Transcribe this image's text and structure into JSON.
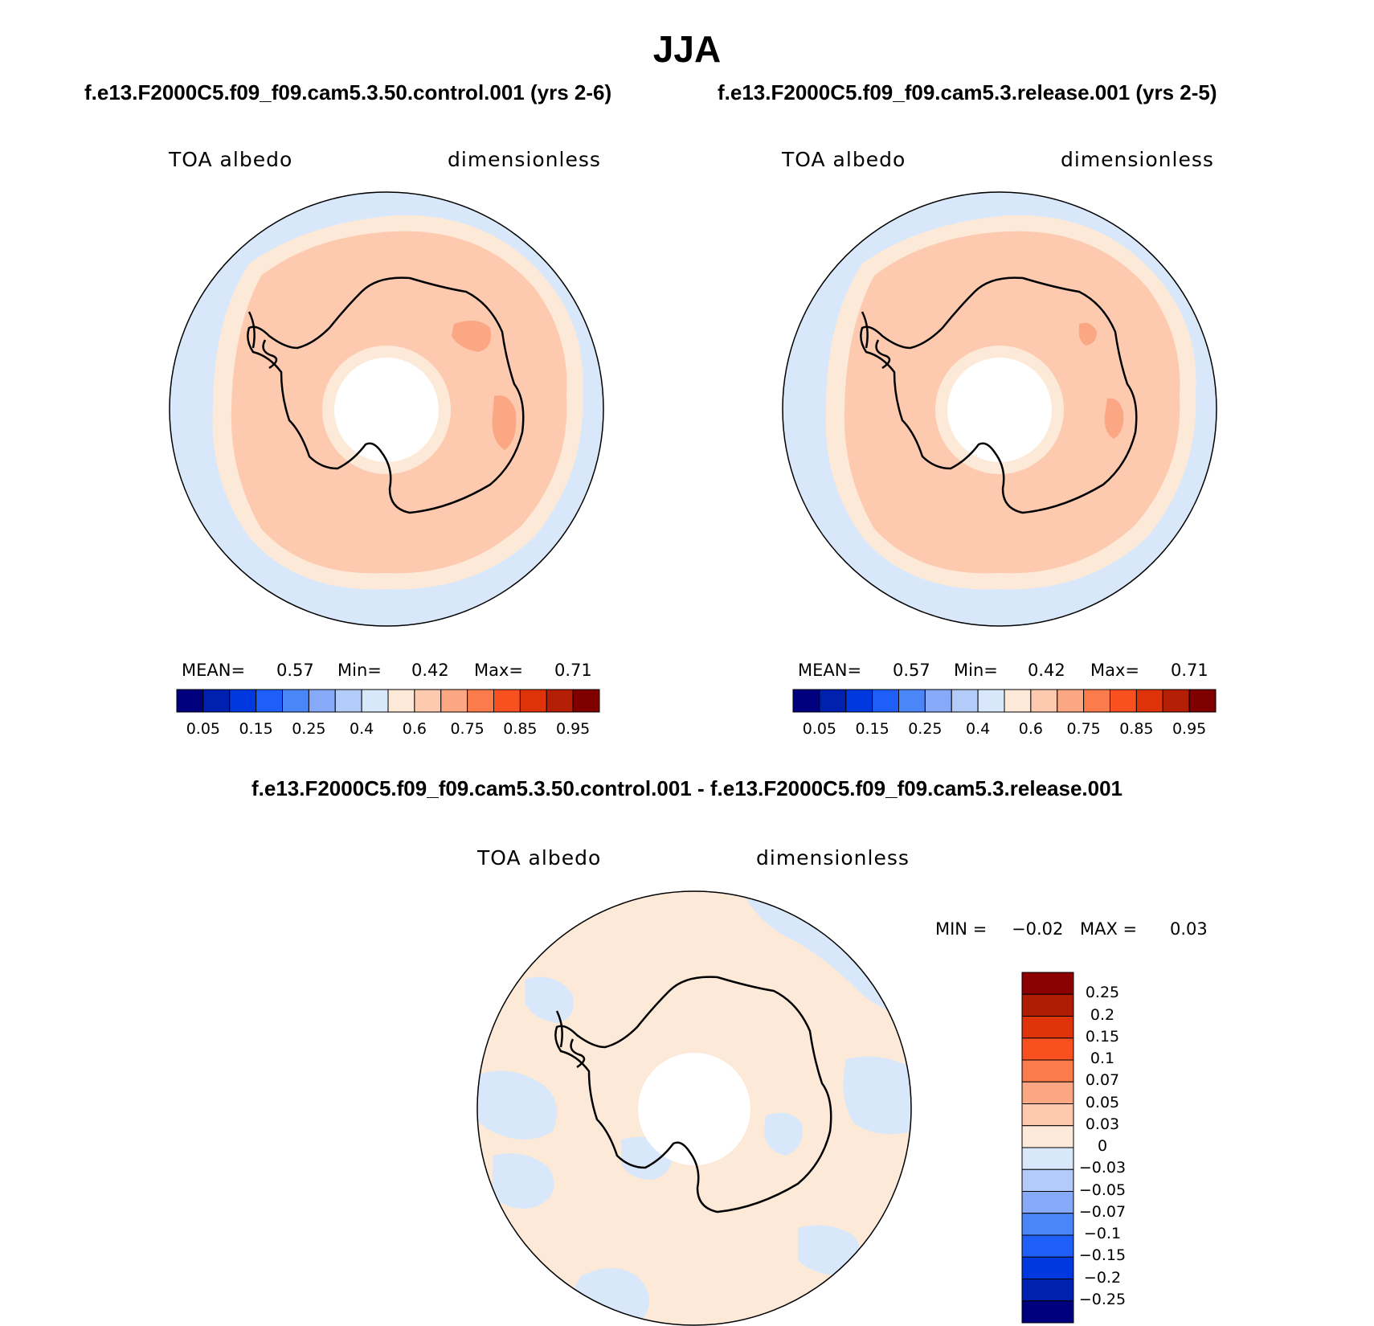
{
  "title": "JJA",
  "panels": [
    {
      "case_title": "f.e13.F2000C5.f09_f09.cam5.3.50.control.001 (yrs 2-6)",
      "left_label": "TOA albedo",
      "right_label": "dimensionless",
      "stats": {
        "mean_label": "MEAN=",
        "mean_value": "0.57",
        "min_label": "Min=",
        "min_value": "0.42",
        "max_label": "Max=",
        "max_value": "0.71"
      }
    },
    {
      "case_title": "f.e13.F2000C5.f09_f09.cam5.3.release.001 (yrs 2-5)",
      "left_label": "TOA albedo",
      "right_label": "dimensionless",
      "stats": {
        "mean_label": "MEAN=",
        "mean_value": "0.57",
        "min_label": "Min=",
        "min_value": "0.42",
        "max_label": "Max=",
        "max_value": "0.71"
      }
    }
  ],
  "colorbar_abs": {
    "colors": [
      "#00007f",
      "#0020b0",
      "#0038e0",
      "#1f5ff7",
      "#4a86f7",
      "#86aaf8",
      "#b3cbf9",
      "#d8e8fa",
      "#fde9d8",
      "#fdcab0",
      "#fca783",
      "#fb7b4b",
      "#f9501f",
      "#df340a",
      "#b31e05",
      "#800000"
    ],
    "labels": [
      "0.05",
      "0.15",
      "0.25",
      "0.4",
      "0.6",
      "0.75",
      "0.85",
      "0.95"
    ]
  },
  "difference": {
    "title": "f.e13.F2000C5.f09_f09.cam5.3.50.control.001 - f.e13.F2000C5.f09_f09.cam5.3.release.001",
    "left_label": "TOA albedo",
    "right_label": "dimensionless",
    "min_label": "MIN =",
    "min_value": "−0.02",
    "max_label": "MAX =",
    "max_value": "0.03"
  },
  "colorbar_diff": {
    "colors_top_to_bottom": [
      "#8b0000",
      "#b01d05",
      "#df340a",
      "#f9501f",
      "#fb7b4b",
      "#fca783",
      "#fdcab0",
      "#fde9d8",
      "#d8e8fa",
      "#b3cbf9",
      "#86aaf8",
      "#4a86f7",
      "#1f5ff7",
      "#0038e0",
      "#0020b0",
      "#00007f"
    ],
    "labels_top_to_bottom": [
      "0.25",
      "0.2",
      "0.15",
      "0.1",
      "0.07",
      "0.05",
      "0.03",
      "0",
      "−0.03",
      "−0.05",
      "−0.07",
      "−0.1",
      "−0.15",
      "−0.2",
      "−0.25"
    ]
  },
  "map_colors": {
    "ocean": "#d8e8fa",
    "ring": "#fde9d8",
    "land_high": "#fdcab0",
    "peak": "#fca783",
    "diff_base": "#fde9d8",
    "diff_neg": "#d8e8fa"
  }
}
